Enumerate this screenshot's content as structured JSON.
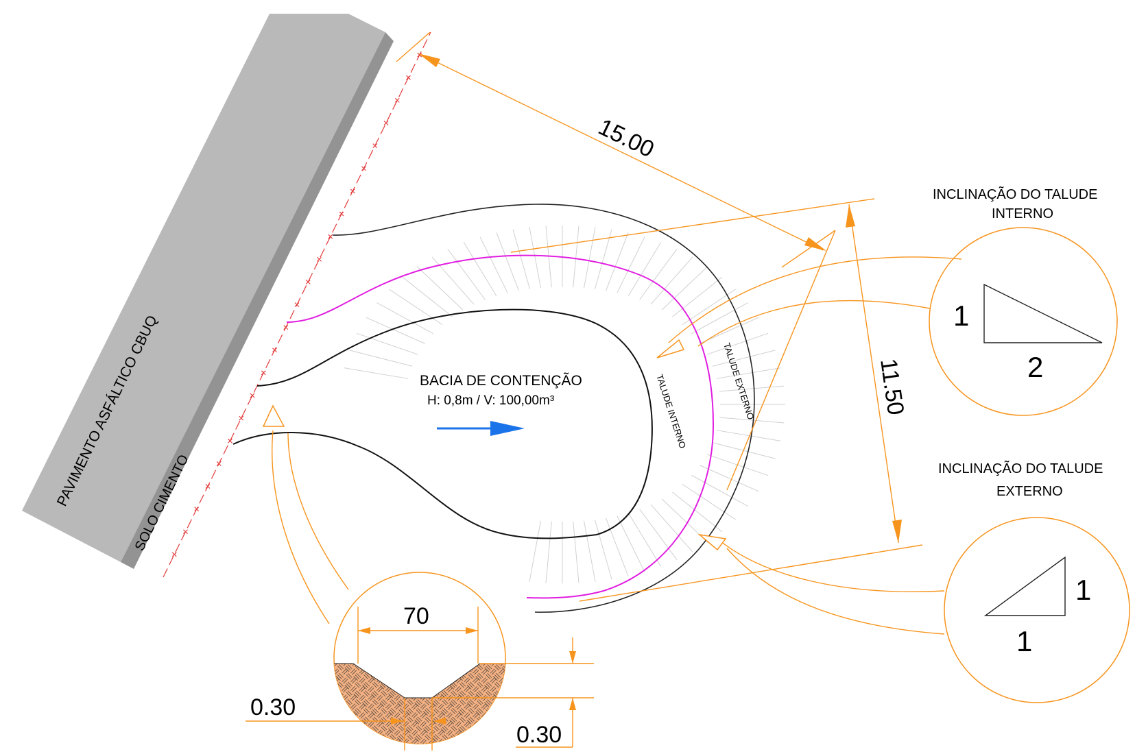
{
  "labels": {
    "road": "PAVIMENTO ASFÁLTICO CBUQ",
    "soil": "SOLO CIMENTO",
    "basin_title": "BACIA DE CONTENÇÃO",
    "basin_spec": "H: 0,8m / V: 100,00m³",
    "inner_slope_label": "TALUDE INTERNO",
    "outer_slope_label": "TALUDE EXTERNO"
  },
  "dimensions": {
    "length": "15.00",
    "width": "11.50",
    "channel_width": "70",
    "depth_left": "0.30",
    "depth_right": "0.30"
  },
  "details": {
    "internal": {
      "title_line1": "INCLINAÇÃO DO TALUDE",
      "title_line2": "INTERNO",
      "rise": "1",
      "run": "2"
    },
    "external": {
      "title_line1": "INCLINAÇÃO DO TALUDE",
      "title_line2": "EXTERNO",
      "rise": "1",
      "run": "1"
    }
  },
  "colors": {
    "dimension": "#f7941d",
    "pavement": "#b9b9b9",
    "pavement_side": "#939393",
    "fence": "#e23a3a",
    "centerline": "#e11ee1",
    "flow_arrow": "#1a73e8",
    "hatch_fill": "#f4b183"
  }
}
